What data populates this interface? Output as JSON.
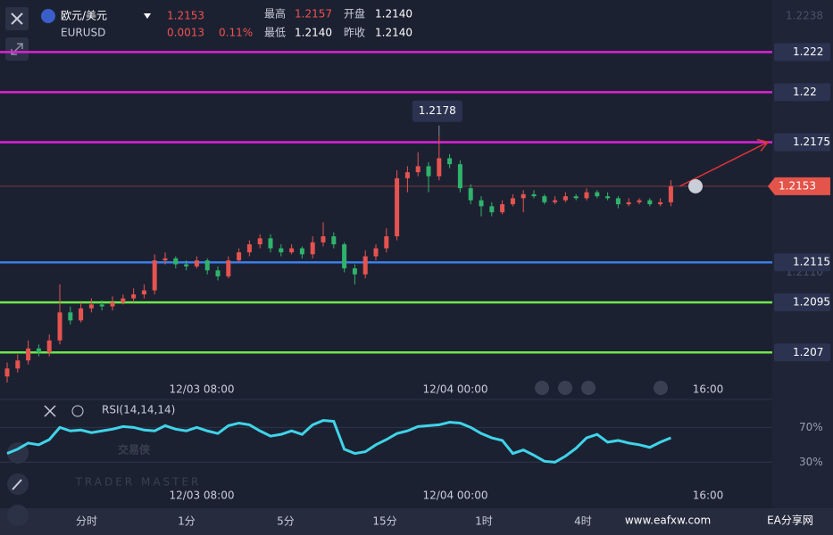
{
  "header": {
    "name": "欧元/美元",
    "symbol": "EURUSD",
    "price": "1.2153",
    "change": "0.0013",
    "change_pct": "0.11%",
    "stats": [
      {
        "label": "最高",
        "value": "1.2157"
      },
      {
        "label": "开盘",
        "value": "1.2140"
      },
      {
        "label": "最低",
        "value": "1.2140"
      },
      {
        "label": "昨收",
        "value": "1.2140"
      }
    ]
  },
  "chart_data": {
    "type": "candlestick",
    "up_color": "#e6534f",
    "down_color": "#2fb36b",
    "ylim": [
      1.2059,
      1.2246
    ],
    "yticks": [
      1.2238,
      {
        "value": 1.211,
        "label": "1.2110"
      }
    ],
    "levels": [
      {
        "value": 1.222,
        "color": "#e020d8"
      },
      {
        "value": 1.22,
        "color": "#e020d8"
      },
      {
        "value": 1.2175,
        "color": "#e020d8"
      },
      {
        "value": 1.2115,
        "color": "#3a7ee8"
      },
      {
        "value": 1.2095,
        "color": "#6ee84a"
      },
      {
        "value": 1.207,
        "color": "#6ee84a"
      }
    ],
    "last_price": 1.2153,
    "max_label": 1.2178,
    "time_labels": [
      "12/03 08:00",
      "12/04 00:00",
      "16:00"
    ],
    "open": [
      1.2058,
      1.2062,
      1.2066,
      1.2072,
      1.207,
      1.2076,
      1.209,
      1.2086,
      1.2092,
      1.2094,
      1.2093,
      1.2095,
      1.2097,
      1.2099,
      1.2101,
      1.2116,
      1.2117,
      1.2114,
      1.2113,
      1.2116,
      1.2111,
      1.2108,
      1.2116,
      1.212,
      1.2124,
      1.2127,
      1.2122,
      1.212,
      1.2122,
      1.2119,
      1.2125,
      1.2128,
      1.2124,
      1.2112,
      1.2109,
      1.2118,
      1.2122,
      1.2128,
      1.2157,
      1.216,
      1.2163,
      1.2158,
      1.2167,
      1.2164,
      1.2152,
      1.2146,
      1.2143,
      1.214,
      1.2144,
      1.2147,
      1.2149,
      1.2148,
      1.2145,
      1.2146,
      1.2148,
      1.2147,
      1.215,
      1.2148,
      1.2147,
      1.2144,
      1.2145,
      1.2146,
      1.2144,
      1.2145
    ],
    "high": [
      1.2065,
      1.2069,
      1.2076,
      1.2074,
      1.2079,
      1.2104,
      1.2093,
      1.2095,
      1.2097,
      1.2096,
      1.2098,
      1.2099,
      1.2102,
      1.2104,
      1.2119,
      1.212,
      1.2118,
      1.2116,
      1.2118,
      1.2117,
      1.2113,
      1.2118,
      1.2122,
      1.2126,
      1.2129,
      1.2129,
      1.2124,
      1.2124,
      1.2123,
      1.2128,
      1.2135,
      1.213,
      1.2125,
      1.2114,
      1.2121,
      1.2124,
      1.2132,
      1.2161,
      1.2163,
      1.217,
      1.2165,
      1.2178,
      1.2169,
      1.2166,
      1.2154,
      1.2148,
      1.2145,
      1.2146,
      1.2149,
      1.2151,
      1.2151,
      1.2149,
      1.2148,
      1.215,
      1.2149,
      1.2152,
      1.2151,
      1.215,
      1.2148,
      1.2147,
      1.2147,
      1.2147,
      1.2147,
      1.2156
    ],
    "low": [
      1.2055,
      1.206,
      1.2064,
      1.2068,
      1.2068,
      1.2074,
      1.2084,
      1.2085,
      1.209,
      1.2091,
      1.2091,
      1.2094,
      1.2095,
      1.2097,
      1.2099,
      1.2114,
      1.2112,
      1.2111,
      1.2112,
      1.2109,
      1.2106,
      1.2107,
      1.2115,
      1.2118,
      1.2122,
      1.212,
      1.2118,
      1.2119,
      1.2117,
      1.2117,
      1.2123,
      1.2122,
      1.211,
      1.2104,
      1.2107,
      1.2116,
      1.212,
      1.2126,
      1.215,
      1.2158,
      1.215,
      1.2156,
      1.2162,
      1.215,
      1.2144,
      1.2138,
      1.2138,
      1.2139,
      1.2143,
      1.214,
      1.2147,
      1.2144,
      1.2144,
      1.2145,
      1.2146,
      1.2146,
      1.2147,
      1.2146,
      1.2142,
      1.2143,
      1.2144,
      1.2143,
      1.2143,
      1.2143
    ],
    "close": [
      1.2062,
      1.2066,
      1.2072,
      1.207,
      1.2076,
      1.209,
      1.2086,
      1.2092,
      1.2094,
      1.2093,
      1.2095,
      1.2097,
      1.2099,
      1.2101,
      1.2116,
      1.2117,
      1.2114,
      1.2113,
      1.2116,
      1.2111,
      1.2108,
      1.2116,
      1.212,
      1.2124,
      1.2127,
      1.2122,
      1.212,
      1.2122,
      1.2119,
      1.2125,
      1.2128,
      1.2124,
      1.2112,
      1.2109,
      1.2118,
      1.2122,
      1.2128,
      1.2157,
      1.216,
      1.2163,
      1.2158,
      1.2167,
      1.2164,
      1.2152,
      1.2146,
      1.2143,
      1.214,
      1.2144,
      1.2147,
      1.2149,
      1.2148,
      1.2145,
      1.2146,
      1.2148,
      1.2147,
      1.215,
      1.2148,
      1.2147,
      1.2144,
      1.2145,
      1.2146,
      1.2144,
      1.2145,
      1.2153
    ],
    "rsi": {
      "name": "RSI(14,14,14)",
      "color": "#3fd4e8",
      "ylim": [
        18,
        95
      ],
      "yticks": [
        {
          "value": 70,
          "label": "70%"
        },
        {
          "value": 30,
          "label": "30%"
        }
      ],
      "values": [
        40,
        45,
        52,
        50,
        56,
        70,
        66,
        67,
        64,
        66,
        68,
        71,
        70,
        67,
        66,
        72,
        68,
        66,
        70,
        66,
        63,
        72,
        75,
        73,
        66,
        60,
        62,
        66,
        62,
        73,
        78,
        77,
        45,
        40,
        42,
        50,
        56,
        63,
        66,
        71,
        72,
        73,
        76,
        75,
        70,
        63,
        58,
        55,
        40,
        44,
        38,
        31,
        30,
        37,
        46,
        58,
        62,
        53,
        55,
        52,
        50,
        47,
        53,
        58
      ]
    }
  },
  "timeframes": [
    "分时",
    "1分",
    "5分",
    "15分",
    "1时",
    "4时"
  ],
  "watermark": {
    "logo": "交易侠",
    "sub": "TRADER MASTER",
    "site": "www.eafxw.com",
    "site_name": "EA分享网"
  }
}
